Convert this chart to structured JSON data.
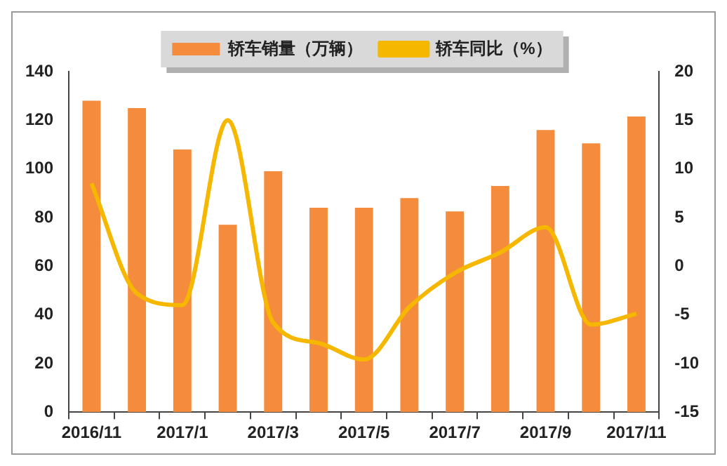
{
  "chart_data": {
    "type": "bar",
    "categories": [
      "2016/11",
      null,
      "2017/1",
      null,
      "2017/3",
      null,
      "2017/5",
      null,
      "2017/7",
      null,
      "2017/9",
      null,
      "2017/11"
    ],
    "series": [
      {
        "name": "轿车销量（万辆）",
        "color": "#f58b3c",
        "values": [
          128,
          125,
          108,
          77,
          99,
          84,
          84,
          88,
          82.5,
          93,
          116,
          110.5,
          121.5
        ]
      },
      {
        "name": "轿车同比（%）",
        "type": "line",
        "axis": "y2",
        "color": "#f5b700",
        "values": [
          8.5,
          -2.8,
          -4,
          15,
          -5.8,
          -7.9,
          -9.6,
          -4.2,
          -0.7,
          1.4,
          4,
          -6,
          -4.9
        ]
      }
    ],
    "ylim": [
      0,
      140
    ],
    "yticks": [
      0,
      20,
      40,
      60,
      80,
      100,
      120,
      140
    ],
    "y2lim": [
      -15,
      20
    ],
    "y2ticks": [
      -15,
      -10,
      -5,
      0,
      5,
      10,
      15,
      20
    ],
    "grid": false,
    "legend": "top",
    "marker": "none",
    "line_style": "solid"
  }
}
